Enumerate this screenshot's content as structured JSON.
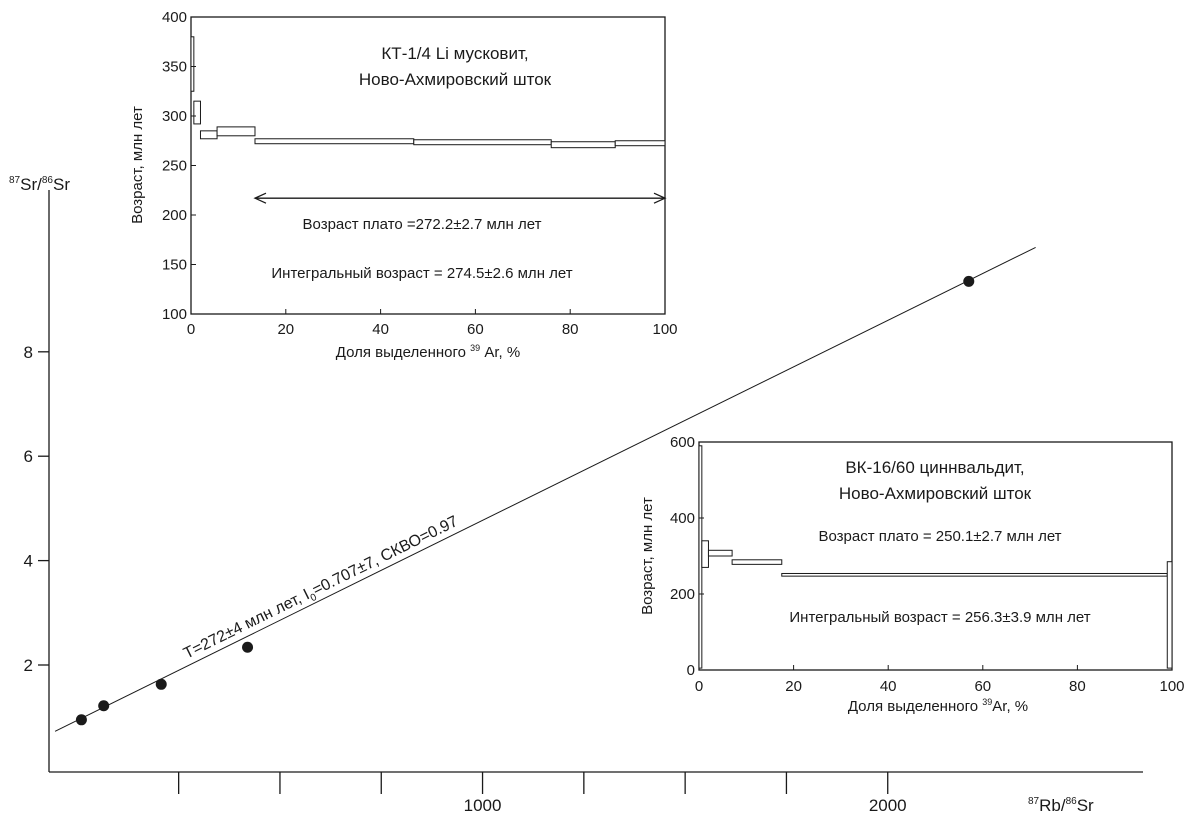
{
  "chart_data": [
    {
      "id": "main",
      "type": "scatter",
      "ylabel_main": "Sr/",
      "ylabel_sup1": "87",
      "ylabel_sup2": "86",
      "ylabel_tail": "Sr",
      "xlabel_main": "Rb/",
      "xlabel_sup1": "87",
      "xlabel_sup2": "86",
      "xlabel_tail": "Sr",
      "xlim": [
        -70,
        2630
      ],
      "ylim": [
        -0.05,
        11.1
      ],
      "x_ticks": [
        250,
        500,
        750,
        1000,
        1250,
        1500,
        1750,
        2000
      ],
      "x_tick_labels": [
        {
          "x": 1000,
          "label": "1000"
        },
        {
          "x": 2000,
          "label": "2000"
        }
      ],
      "y_ticks": [
        2,
        4,
        6,
        8
      ],
      "y_tick_labels": [
        "2",
        "4",
        "6",
        "8"
      ],
      "points": [
        {
          "x": 10,
          "y": 0.95
        },
        {
          "x": 65,
          "y": 1.22
        },
        {
          "x": 207,
          "y": 1.63
        },
        {
          "x": 420,
          "y": 2.34
        },
        {
          "x": 2200,
          "y": 9.35
        }
      ],
      "fit_line": {
        "x0": -55,
        "y0": 0.73,
        "x1": 2365,
        "y1": 10.0
      },
      "annotation": {
        "p1": "T=272±4 млн лет, I",
        "sub": "0",
        "p2": "=0.707±7, СКВО=0.97",
        "x": 270,
        "y": 1.98
      }
    },
    {
      "id": "inset-1",
      "type": "step",
      "title_lines": [
        "КТ-1/4 Li мусковит,",
        "Ново-Ахмировский шток"
      ],
      "ylabel": "Возраст, млн лет",
      "xlabel_main": "Доля выделенного ",
      "xlabel_sup": "39",
      "xlabel_tail": " Ar, %",
      "xlim": [
        0,
        100
      ],
      "ylim": [
        100,
        400
      ],
      "x_ticks": [
        0,
        20,
        40,
        60,
        80,
        100
      ],
      "y_ticks": [
        100,
        150,
        200,
        250,
        300,
        350,
        400
      ],
      "steps": [
        {
          "x0": 0,
          "x1": 0.6,
          "ylo": 325,
          "yhi": 380
        },
        {
          "x0": 0.6,
          "x1": 2,
          "ylo": 292,
          "yhi": 315
        },
        {
          "x0": 2,
          "x1": 5.5,
          "ylo": 277,
          "yhi": 285
        },
        {
          "x0": 5.5,
          "x1": 13.5,
          "ylo": 280,
          "yhi": 289
        },
        {
          "x0": 13.5,
          "x1": 47,
          "ylo": 272,
          "yhi": 277
        },
        {
          "x0": 47,
          "x1": 76,
          "ylo": 271,
          "yhi": 276
        },
        {
          "x0": 76,
          "x1": 89.5,
          "ylo": 268,
          "yhi": 274
        },
        {
          "x0": 89.5,
          "x1": 100,
          "ylo": 270,
          "yhi": 275
        }
      ],
      "plateau_arrow": {
        "x0": 13.5,
        "x1": 100,
        "y": 217
      },
      "plateau_text": "Возраст плато =272.2±2.7 млн лет",
      "integral_text": "Интегральный возраст = 274.5±2.6 млн лет"
    },
    {
      "id": "inset-2",
      "type": "step",
      "title_lines": [
        "ВК-16/60 циннвальдит,",
        "Ново-Ахмировский шток"
      ],
      "ylabel": "Возраст, млн лет",
      "xlabel_main": "Доля выделенного ",
      "xlabel_sup": "39",
      "xlabel_tail": "Ar, %",
      "xlim": [
        0,
        100
      ],
      "ylim": [
        0,
        600
      ],
      "x_ticks": [
        0,
        20,
        40,
        60,
        80,
        100
      ],
      "y_ticks": [
        0,
        200,
        400,
        600
      ],
      "steps": [
        {
          "x0": 0,
          "x1": 0.6,
          "ylo": 5,
          "yhi": 590
        },
        {
          "x0": 0.6,
          "x1": 2,
          "ylo": 270,
          "yhi": 340
        },
        {
          "x0": 2,
          "x1": 7,
          "ylo": 300,
          "yhi": 315
        },
        {
          "x0": 7,
          "x1": 17.5,
          "ylo": 278,
          "yhi": 290
        },
        {
          "x0": 17.5,
          "x1": 99,
          "ylo": 247,
          "yhi": 254
        },
        {
          "x0": 99,
          "x1": 100,
          "ylo": 5,
          "yhi": 285
        }
      ],
      "plateau_text": "Возраст плато = 250.1±2.7 млн лет",
      "integral_text": "Интегральный возраст = 256.3±3.9 млн лет"
    }
  ]
}
